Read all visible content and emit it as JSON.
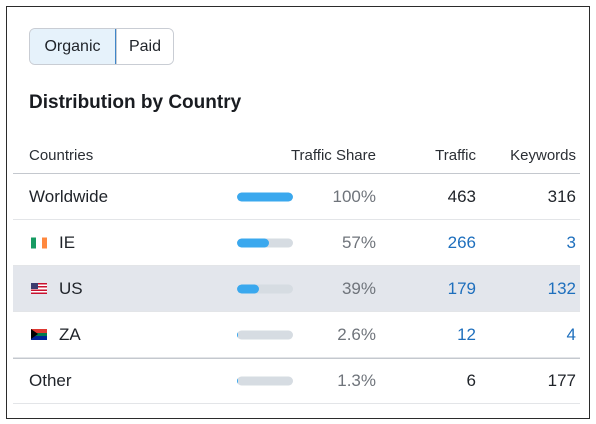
{
  "toggle": {
    "organic_label": "Organic",
    "paid_label": "Paid",
    "active": "Organic"
  },
  "title": "Distribution by Country",
  "columns": {
    "countries": "Countries",
    "share": "Traffic Share",
    "traffic": "Traffic",
    "keywords": "Keywords"
  },
  "rows": [
    {
      "country": "Worldwide",
      "flag": "",
      "share": "100%",
      "share_value": 1.0,
      "traffic": "463",
      "keywords": "316",
      "linked": false
    },
    {
      "country": "IE",
      "flag": "ireland-flag-icon",
      "share": "57%",
      "share_value": 0.57,
      "traffic": "266",
      "keywords": "3",
      "linked": true
    },
    {
      "country": "US",
      "flag": "us-flag-icon",
      "share": "39%",
      "share_value": 0.39,
      "traffic": "179",
      "keywords": "132",
      "linked": true
    },
    {
      "country": "ZA",
      "flag": "south-africa-flag-icon",
      "share": "2.6%",
      "share_value": 0.026,
      "traffic": "12",
      "keywords": "4",
      "linked": true
    },
    {
      "country": "Other",
      "flag": "",
      "share": "1.3%",
      "share_value": 0.013,
      "traffic": "6",
      "keywords": "177",
      "linked": false
    }
  ],
  "colors": {
    "accent": "#3aa8ee",
    "link": "#1e6fbd",
    "highlight_row": "#e3e6ec",
    "active_toggle": "#e6f2fb"
  }
}
